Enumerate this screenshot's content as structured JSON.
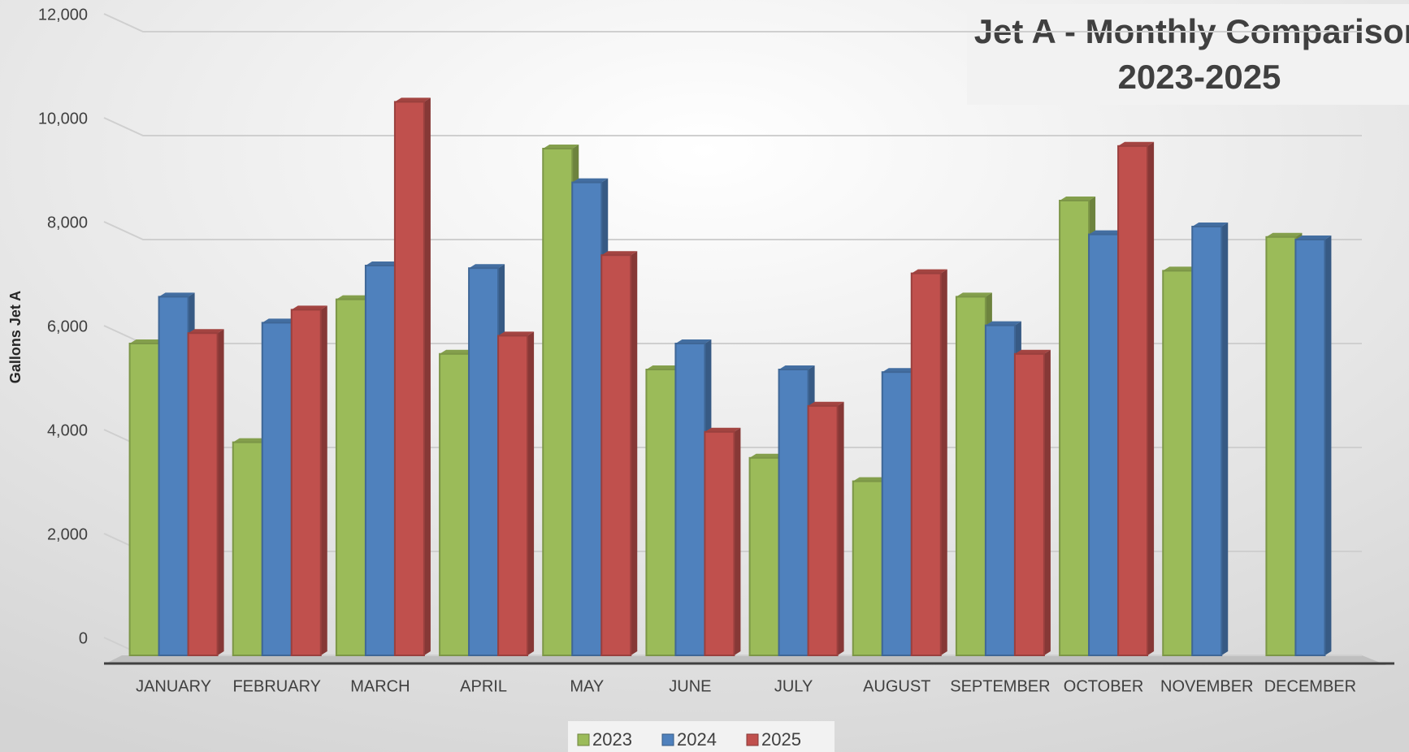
{
  "chart_data": {
    "type": "bar",
    "title_lines": [
      "Jet A - Monthly Comparison",
      "2023-2025"
    ],
    "y_label": "Gallons Jet A",
    "categories": [
      "JANUARY",
      "FEBRUARY",
      "MARCH",
      "APRIL",
      "MAY",
      "JUNE",
      "JULY",
      "AUGUST",
      "SEPTEMBER",
      "OCTOBER",
      "NOVEMBER",
      "DECEMBER"
    ],
    "series": [
      {
        "name": "2023",
        "color": "#9bbb59",
        "values": [
          6000,
          4100,
          6850,
          5800,
          9750,
          5500,
          3800,
          3350,
          6900,
          8750,
          7400,
          8050
        ]
      },
      {
        "name": "2024",
        "color": "#4f81bd",
        "values": [
          6900,
          6400,
          7500,
          7450,
          9100,
          6000,
          5500,
          5450,
          6350,
          8100,
          8250,
          8000
        ]
      },
      {
        "name": "2025",
        "color": "#c0504d",
        "values": [
          6200,
          6650,
          10650,
          6150,
          7700,
          4300,
          4800,
          7350,
          5800,
          9800,
          null,
          null
        ]
      }
    ],
    "ylim": [
      0,
      12000
    ],
    "yticks": [
      0,
      {
        "value": 2000,
        "label": "2,000"
      },
      {
        "value": 4000,
        "label": "4,000"
      },
      {
        "value": 6000,
        "label": "6,000"
      },
      {
        "value": 8000,
        "label": "8,000"
      },
      {
        "value": 10000,
        "label": "10,000"
      },
      {
        "value": 12000,
        "label": "12,000"
      }
    ],
    "grid": true,
    "legend": "bottom"
  }
}
